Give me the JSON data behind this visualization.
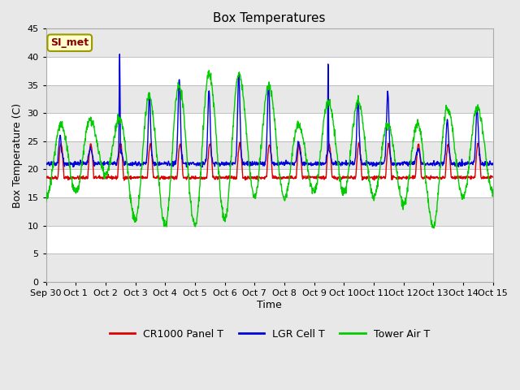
{
  "title": "Box Temperatures",
  "ylabel": "Box Temperature (C)",
  "xlabel": "Time",
  "ylim": [
    0,
    45
  ],
  "yticks": [
    0,
    5,
    10,
    15,
    20,
    25,
    30,
    35,
    40,
    45
  ],
  "fig_bg": "#e8e8e8",
  "plot_bg": "#e8e8e8",
  "annotation_text": "SI_met",
  "annotation_bg": "#ffffcc",
  "annotation_border": "#999900",
  "annotation_text_color": "#880000",
  "line_red": "#dd0000",
  "line_blue": "#0000dd",
  "line_green": "#00cc00",
  "legend_labels": [
    "CR1000 Panel T",
    "LGR Cell T",
    "Tower Air T"
  ],
  "x_tick_labels": [
    "Sep 30",
    "Oct 1",
    "Oct 2",
    "Oct 3",
    "Oct 4",
    "Oct 5",
    "Oct 6",
    "Oct 7",
    "Oct 8",
    "Oct 9",
    "Oct 10",
    "Oct 11",
    "Oct 12",
    "Oct 13",
    "Oct 14",
    "Oct 15"
  ],
  "grid_colors": [
    "#ffffff",
    "#d8d8d8"
  ],
  "num_points": 1500,
  "start_day": 0,
  "end_day": 15
}
